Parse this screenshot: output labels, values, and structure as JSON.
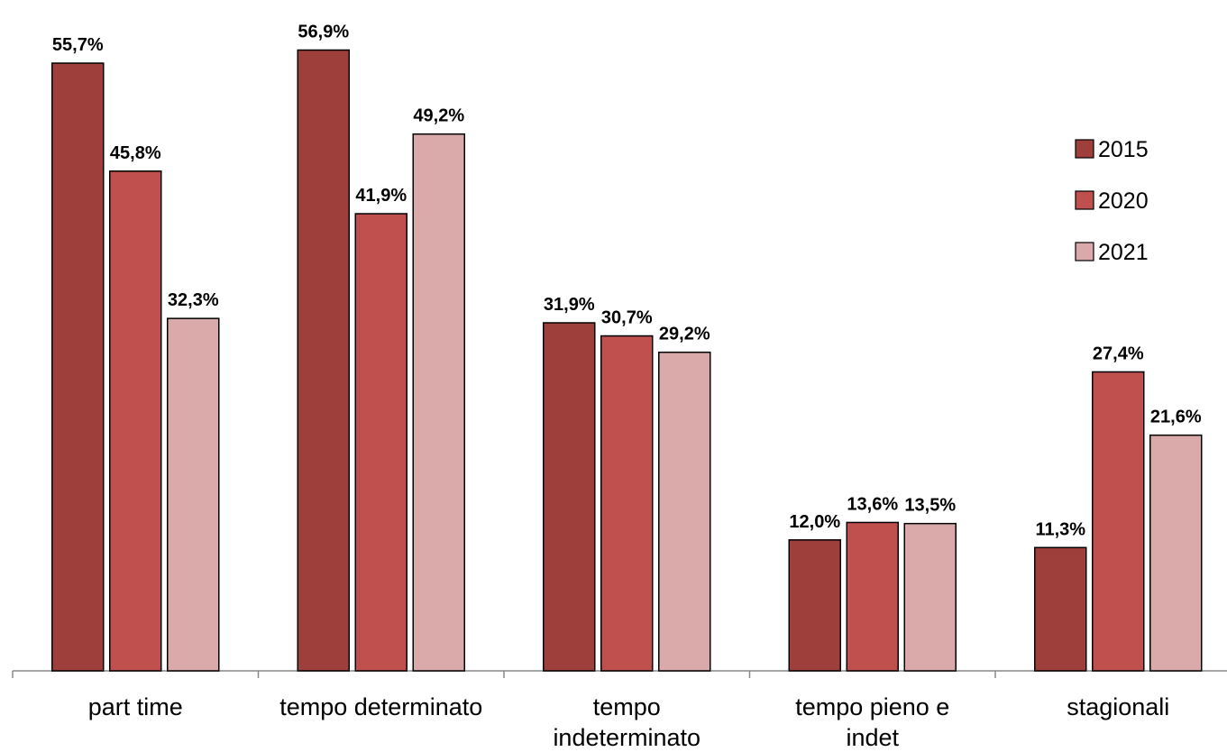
{
  "chart_data": {
    "type": "bar",
    "categories": [
      [
        "part time"
      ],
      [
        "tempo determinato"
      ],
      [
        "tempo",
        "indeterminato"
      ],
      [
        "tempo pieno e",
        "indet"
      ],
      [
        "stagionali"
      ]
    ],
    "series": [
      {
        "name": "2015",
        "color": "#9e3f3c",
        "values": [
          55.7,
          56.9,
          31.9,
          12.0,
          11.3
        ],
        "labels": [
          "55,7%",
          "56,9%",
          "31,9%",
          "12,0%",
          "11,3%"
        ]
      },
      {
        "name": "2020",
        "color": "#c0504d",
        "values": [
          45.8,
          41.9,
          30.7,
          13.6,
          27.4
        ],
        "labels": [
          "45,8%",
          "41,9%",
          "30,7%",
          "13,6%",
          "27,4%"
        ]
      },
      {
        "name": "2021",
        "color": "#d9aaa9",
        "values": [
          32.3,
          49.2,
          29.2,
          13.5,
          21.6
        ],
        "labels": [
          "32,3%",
          "49,2%",
          "29,2%",
          "13,5%",
          "21,6%"
        ]
      }
    ],
    "title": "",
    "xlabel": "",
    "ylabel": "",
    "ylim": [
      0,
      60
    ],
    "grid": false,
    "legend_position": "right"
  }
}
